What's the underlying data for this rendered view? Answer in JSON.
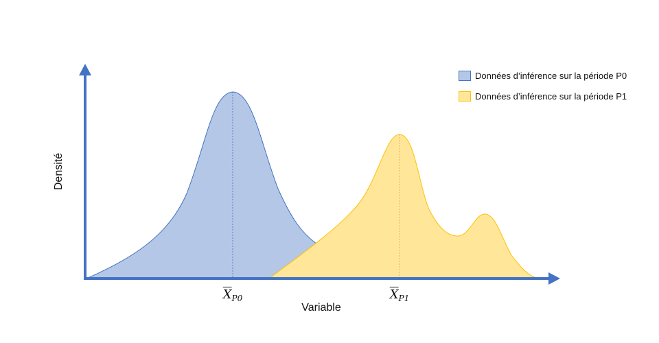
{
  "axes": {
    "ylabel": "Densité",
    "xlabel": "Variable"
  },
  "legend": [
    {
      "label": "Données d’inférence sur la période P0",
      "fill": "#b4c7e7",
      "stroke": "#4472c4"
    },
    {
      "label": "Données d’inférence sur la période P1",
      "fill": "#ffe699",
      "stroke": "#ffc000"
    }
  ],
  "means": [
    {
      "symbol": "X",
      "subscript": "P0"
    },
    {
      "symbol": "X",
      "subscript": "P1"
    }
  ],
  "colors": {
    "axis": "#4472c4",
    "p0_fill": "#b4c7e7",
    "p0_stroke": "#4472c4",
    "p1_fill": "#ffe699",
    "p1_stroke": "#ffc000"
  }
}
